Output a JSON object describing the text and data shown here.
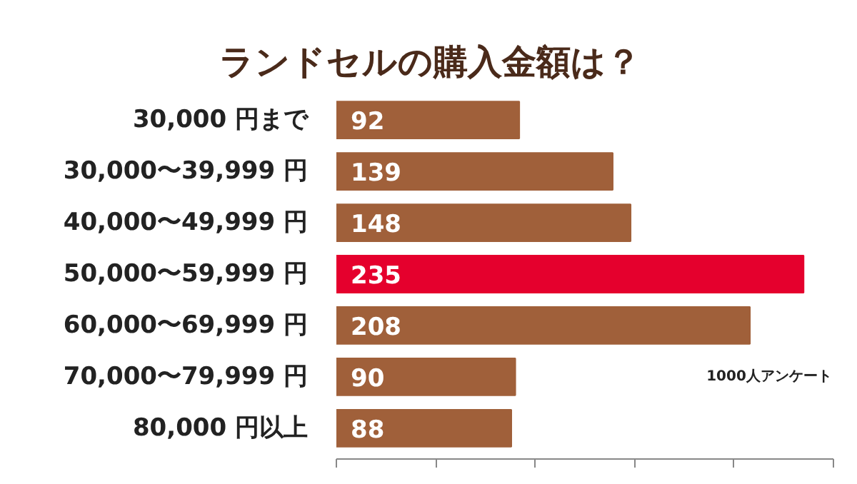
{
  "chart_data": {
    "type": "bar",
    "orientation": "horizontal",
    "title": "ランドセルの購入金額は？",
    "categories": [
      "30,000 円まで",
      "30,000〜39,999 円",
      "40,000〜49,999 円",
      "50,000〜59,999 円",
      "60,000〜69,999 円",
      "70,000〜79,999 円",
      "80,000 円以上"
    ],
    "values": [
      92,
      139,
      148,
      235,
      208,
      90,
      88
    ],
    "colors": [
      "#a0603a",
      "#a0603a",
      "#a0603a",
      "#e5002d",
      "#a0603a",
      "#a0603a",
      "#a0603a"
    ],
    "xlim": [
      0,
      250
    ],
    "xticks": [
      {
        "value": 0,
        "label": null
      },
      {
        "value": 50,
        "label": null
      },
      {
        "value": 100,
        "label": null
      },
      {
        "value": 150,
        "label": null
      },
      {
        "value": 200,
        "label": null
      },
      {
        "value": 250,
        "label": null
      }
    ],
    "tick_labels": "y",
    "data_labels": true,
    "grid": false,
    "annotations": [
      "1000人アンケート"
    ]
  }
}
